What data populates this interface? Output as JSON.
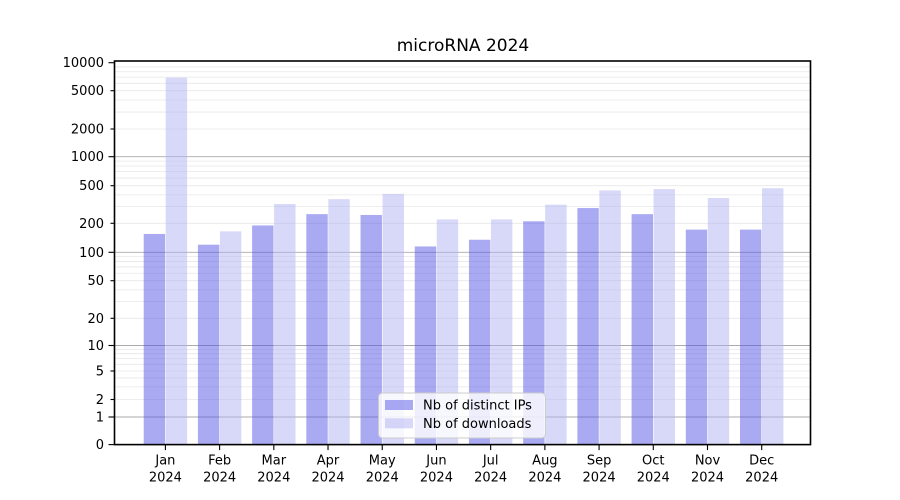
{
  "chart_data": {
    "type": "bar",
    "title": "microRNA 2024",
    "categories": [
      "Jan",
      "Feb",
      "Mar",
      "Apr",
      "May",
      "Jun",
      "Jul",
      "Aug",
      "Sep",
      "Oct",
      "Nov",
      "Dec"
    ],
    "category_year": "2024",
    "series": [
      {
        "name": "Nb of distinct IPs",
        "color": "#5555e6",
        "alpha": 0.5,
        "values": [
          155,
          120,
          190,
          250,
          245,
          115,
          135,
          210,
          290,
          250,
          172,
          172
        ]
      },
      {
        "name": "Nb of downloads",
        "color": "#b1b1f1",
        "alpha": 0.5,
        "values": [
          6900,
          165,
          320,
          360,
          410,
          220,
          220,
          315,
          445,
          460,
          370,
          470
        ]
      }
    ],
    "xlabel": "",
    "ylabel": "",
    "yscale": "symlog",
    "ylim": [
      0,
      10000
    ],
    "y_tick_values": [
      0,
      1,
      2,
      5,
      10,
      20,
      50,
      100,
      200,
      500,
      1000,
      2000,
      5000,
      10000
    ],
    "y_tick_labels": [
      "0",
      "1",
      "2",
      "5",
      "10",
      "20",
      "50",
      "100",
      "200",
      "500",
      "1000",
      "2000",
      "5000",
      "10000"
    ],
    "grid": {
      "horizontal_major": true,
      "horizontal_minor": true,
      "vertical": false
    },
    "grid_colors": {
      "major": "#ababab",
      "minor": "#e7e7e7"
    },
    "legend": {
      "position": "lower center",
      "items": [
        "Nb of distinct IPs",
        "Nb of downloads"
      ]
    }
  }
}
